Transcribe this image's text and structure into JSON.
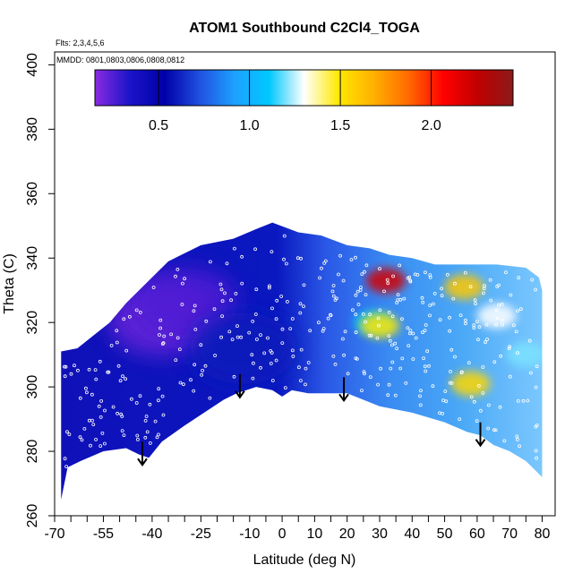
{
  "chart_data": {
    "type": "heatmap",
    "title": "ATOM1 Southbound C2Cl4_TOGA",
    "annotations": [
      "Flts: 2,3,4,5,6",
      "MMDD: 0801,0803,0806,0808,0812"
    ],
    "xlabel": "Latitude (deg N)",
    "ylabel": "Theta (C)",
    "xlim": [
      -70,
      84
    ],
    "ylim": [
      260,
      404
    ],
    "x_ticks_labeled": [
      "-70",
      "-55",
      "-40",
      "-25",
      "-10",
      "0",
      "10",
      "20",
      "30",
      "40",
      "50",
      "60",
      "70",
      "80"
    ],
    "y_ticks": [
      "260",
      "280",
      "300",
      "320",
      "340",
      "360",
      "380",
      "400"
    ],
    "colorbar": {
      "ticks": [
        "0.5",
        "1.0",
        "1.5",
        "2.0"
      ],
      "range": [
        0.15,
        2.45
      ],
      "colors": [
        "#8a2be2",
        "#1a14c8",
        "#0000a8",
        "#2050e0",
        "#1ea0ff",
        "#00c8ff",
        "#ffffff",
        "#ffe800",
        "#ffb000",
        "#ff6a00",
        "#ff0000",
        "#c00000",
        "#8b1a1a"
      ]
    },
    "upper_boundary": [
      [
        -68,
        311
      ],
      [
        -63,
        312
      ],
      [
        -58,
        316
      ],
      [
        -53,
        320
      ],
      [
        -48,
        326
      ],
      [
        -43,
        331
      ],
      [
        -38,
        336
      ],
      [
        -35,
        339
      ],
      [
        -31,
        341
      ],
      [
        -25,
        344
      ],
      [
        -15,
        346
      ],
      [
        -8,
        349
      ],
      [
        -3,
        351
      ],
      [
        5,
        348
      ],
      [
        12,
        347
      ],
      [
        20,
        344
      ],
      [
        27,
        343
      ],
      [
        33,
        341
      ],
      [
        40,
        340
      ],
      [
        47,
        338
      ],
      [
        55,
        338
      ],
      [
        66,
        338
      ],
      [
        75,
        337
      ],
      [
        79,
        334
      ],
      [
        80,
        330
      ]
    ],
    "lower_boundary": [
      [
        -68,
        265
      ],
      [
        -66,
        275
      ],
      [
        -62,
        277
      ],
      [
        -55,
        280
      ],
      [
        -48,
        281
      ],
      [
        -44,
        279
      ],
      [
        -41,
        278
      ],
      [
        -37,
        283
      ],
      [
        -30,
        288
      ],
      [
        -24,
        292
      ],
      [
        -18,
        296
      ],
      [
        -14,
        298
      ],
      [
        -8,
        300
      ],
      [
        -3,
        299
      ],
      [
        0,
        297
      ],
      [
        3,
        299
      ],
      [
        8,
        298
      ],
      [
        15,
        298
      ],
      [
        20,
        298
      ],
      [
        30,
        294
      ],
      [
        40,
        292
      ],
      [
        50,
        289
      ],
      [
        57,
        286
      ],
      [
        61,
        285
      ],
      [
        65,
        282
      ],
      [
        70,
        280
      ],
      [
        75,
        277
      ],
      [
        80,
        272
      ]
    ],
    "features": [
      {
        "lat": -37,
        "theta": 321,
        "value": 0.2
      },
      {
        "lat": -30,
        "theta": 326,
        "value": 0.25
      },
      {
        "lat": -12,
        "theta": 312,
        "value": 0.6
      },
      {
        "lat": 28,
        "theta": 320,
        "value": 1.1
      },
      {
        "lat": 32,
        "theta": 333,
        "value": 2.2
      },
      {
        "lat": 30,
        "theta": 319,
        "value": 1.5
      },
      {
        "lat": 56,
        "theta": 331,
        "value": 1.6
      },
      {
        "lat": 58,
        "theta": 301,
        "value": 1.55
      },
      {
        "lat": 66,
        "theta": 322,
        "value": 1.3
      },
      {
        "lat": 75,
        "theta": 310,
        "value": 1.2
      }
    ],
    "arrows_lat": [
      -43,
      -13,
      19,
      61
    ],
    "arrows_theta": [
      283,
      304,
      303,
      289
    ]
  }
}
